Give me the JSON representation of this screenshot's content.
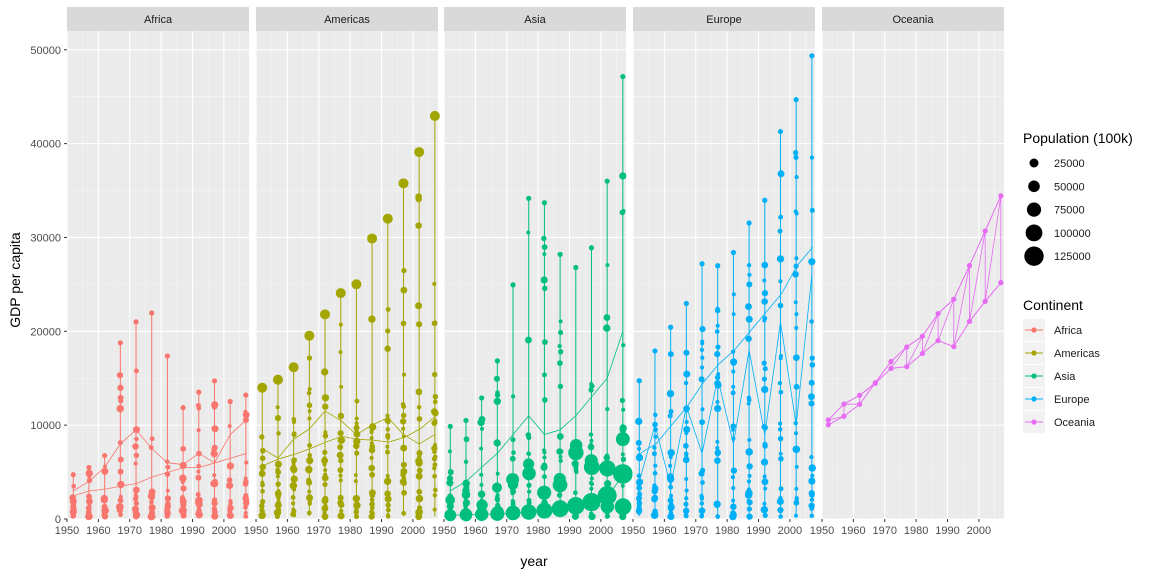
{
  "chart_data": {
    "type": "line",
    "xlabel": "year",
    "ylabel": "GDP per capita",
    "xlim": [
      1950,
      2008
    ],
    "ylim": [
      0,
      52000
    ],
    "x_ticks": [
      1950,
      1960,
      1970,
      1980,
      1990,
      2000
    ],
    "y_ticks": [
      0,
      10000,
      20000,
      30000,
      40000,
      50000
    ],
    "facets": [
      "Africa",
      "Americas",
      "Asia",
      "Europe",
      "Oceania"
    ],
    "colors": {
      "Africa": "#F8766D",
      "Americas": "#A3A500",
      "Asia": "#00BF7D",
      "Europe": "#00B0F6",
      "Oceania": "#E76BF3"
    },
    "color_legend": {
      "title": "Continent",
      "entries": [
        "Africa",
        "Americas",
        "Asia",
        "Europe",
        "Oceania"
      ]
    },
    "size_legend": {
      "title": "Population (100k)",
      "breaks": [
        25000,
        50000,
        75000,
        100000,
        125000
      ],
      "labels": [
        "25000",
        "50000",
        "75000",
        "100000",
        "125000"
      ]
    },
    "years": [
      1952,
      1957,
      1962,
      1967,
      1972,
      1977,
      1982,
      1987,
      1992,
      1997,
      2002,
      2007
    ],
    "panels": [
      {
        "continent": "Africa",
        "max": [
          4725,
          5488,
          6758,
          18773,
          21011,
          21951,
          17364,
          11864,
          13522,
          14723,
          12521,
          13206
        ],
        "median": [
          987,
          1024,
          1134,
          1210,
          1444,
          1400,
          1324,
          1220,
          1162,
          1180,
          1215,
          1452
        ],
        "trace_series": [
          3000,
          4000,
          5500,
          8000,
          9500,
          7500,
          6000,
          5800,
          7000,
          6000,
          9000,
          10500
        ],
        "big_series": [
          2500,
          3000,
          3200,
          3500,
          3800,
          4500,
          5000,
          5500,
          5500,
          6000,
          6500,
          7000
        ]
      },
      {
        "continent": "Americas",
        "max": [
          13990,
          14847,
          16173,
          19530,
          21806,
          24073,
          25010,
          29884,
          32004,
          35767,
          39097,
          42952
        ],
        "median": [
          3048,
          3781,
          4086,
          4643,
          5186,
          6177,
          5785,
          6056,
          6618,
          7113,
          6995,
          8948
        ],
        "trace_series": [
          7500,
          6500,
          8500,
          9600,
          11500,
          10500,
          9000,
          10000,
          10800,
          9000,
          8000,
          9000
        ],
        "big_series": [
          5700,
          6400,
          6900,
          7500,
          8200,
          8800,
          8500,
          8400,
          8200,
          8700,
          9600,
          11000
        ]
      },
      {
        "continent": "Asia",
        "max": [
          9867,
          10500,
          12900,
          16850,
          24950,
          34170,
          33700,
          28200,
          26800,
          28900,
          36000,
          47143
        ],
        "median": [
          1207,
          1548,
          1650,
          2029,
          2371,
          3195,
          3820,
          4106,
          4900,
          5000,
          5050,
          5470
        ],
        "trace_series": [
          3000,
          4000,
          5500,
          7000,
          9000,
          11000,
          9000,
          9500,
          11000,
          13000,
          15000,
          20000
        ],
        "big_series": [
          400,
          450,
          500,
          550,
          650,
          750,
          900,
          1100,
          1400,
          1800,
          2500,
          4800
        ]
      },
      {
        "continent": "Europe",
        "max": [
          14734,
          17909,
          20431,
          22966,
          27195,
          26983,
          28398,
          31541,
          33966,
          41283,
          44684,
          49357
        ],
        "median": [
          5142,
          6066,
          7515,
          9366,
          10766,
          12600,
          13500,
          15700,
          16000,
          18000,
          20500,
          22000
        ],
        "trace_series": [
          4000,
          10000,
          3500,
          12000,
          7000,
          15000,
          8000,
          18000,
          9000,
          21000,
          10000,
          26000
        ],
        "big_series": [
          7000,
          8000,
          10000,
          12000,
          14500,
          16500,
          18000,
          20000,
          22000,
          24000,
          27000,
          29000
        ]
      },
      {
        "continent": "Oceania",
        "series": [
          {
            "values": [
              10040,
              10950,
              12220,
              14526,
              16789,
              18334,
              19477,
              21889,
              23425,
              26998,
              30688,
              34435
            ]
          },
          {
            "values": [
              10557,
              12247,
              13176,
              14464,
              16046,
              16233,
              17632,
              19007,
              18363,
              21050,
              23190,
              25185
            ]
          }
        ]
      }
    ]
  }
}
